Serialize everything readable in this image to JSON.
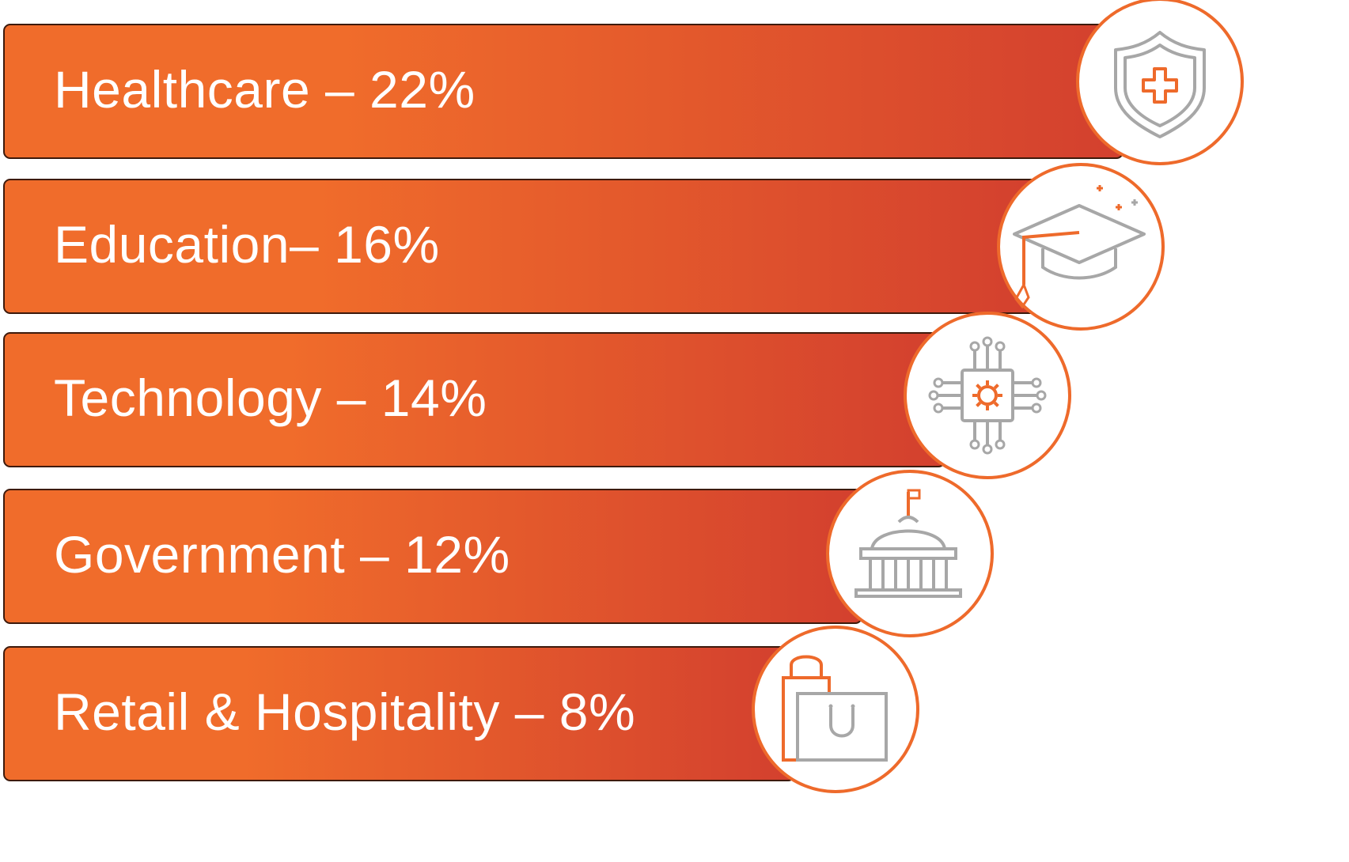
{
  "colors": {
    "bar_start": "#f06c2b",
    "bar_end": "#d3402e",
    "bar_border": "#3d1a0c",
    "label_text": "#ffffff",
    "icon_accent": "#ee6a2b",
    "icon_gray": "#a7a7a7",
    "badge_ring": "#ee6a2b"
  },
  "chart_data": {
    "type": "bar",
    "orientation": "horizontal",
    "title": "",
    "xlabel": "",
    "ylabel": "",
    "unit": "%",
    "categories": [
      "Healthcare",
      "Education",
      "Technology",
      "Government",
      "Retail & Hospitality"
    ],
    "values": [
      22,
      16,
      14,
      12,
      8
    ],
    "labels": [
      "Healthcare – 22%",
      "Education– 16%",
      "Technology – 14%",
      "Government – 12%",
      "Retail & Hospitality – 8%"
    ],
    "icons": [
      "shield-plus-icon",
      "graduation-cap-icon",
      "circuit-chip-icon",
      "capitol-building-icon",
      "shopping-bag-icon"
    ],
    "xlim": [
      0,
      22
    ]
  }
}
